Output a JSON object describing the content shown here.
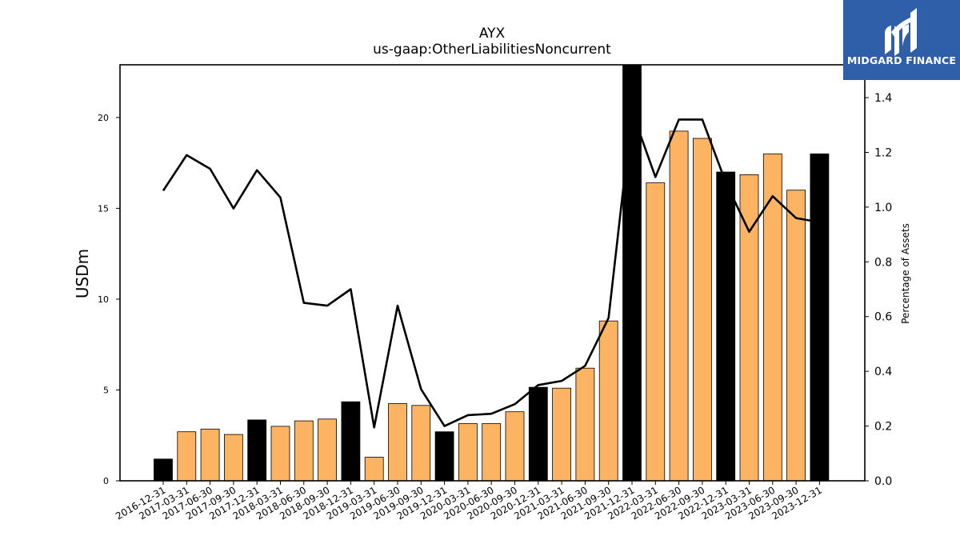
{
  "header": {
    "ticker": "AYX",
    "metric": "us-gaap:OtherLiabilitiesNoncurrent"
  },
  "logo": {
    "brand": "MIDGARD FINANCE",
    "background": "#2f5fa9"
  },
  "colors": {
    "quarter_bar": "#fdb462",
    "year_end_bar": "#000000",
    "line": "#000000"
  },
  "chart_data": {
    "type": "bar",
    "title": "AYX",
    "subtitle": "us-gaap:OtherLiabilitiesNoncurrent",
    "ylabel": "USDm",
    "y2label": "Percentage of Assets",
    "ylim": [
      0,
      22.9
    ],
    "y2lim": [
      0,
      1.52
    ],
    "yticks": [
      0,
      5,
      10,
      15,
      20
    ],
    "y2ticks": [
      0.0,
      0.2,
      0.4,
      0.6,
      0.8,
      1.0,
      1.2,
      1.4
    ],
    "categories": [
      "2016-12-31",
      "2017-03-31",
      "2017-06-30",
      "2017-09-30",
      "2017-12-31",
      "2018-03-31",
      "2018-06-30",
      "2018-09-30",
      "2018-12-31",
      "2019-03-31",
      "2019-06-30",
      "2019-09-30",
      "2019-12-31",
      "2020-03-31",
      "2020-06-30",
      "2020-09-30",
      "2020-12-31",
      "2021-03-31",
      "2021-06-30",
      "2021-09-30",
      "2021-12-31",
      "2022-03-31",
      "2022-06-30",
      "2022-09-30",
      "2022-12-31",
      "2023-03-31",
      "2023-06-30",
      "2023-09-30",
      "2023-12-31"
    ],
    "series": [
      {
        "values": [
          1.2,
          2.7,
          2.85,
          2.55,
          3.35,
          3.0,
          3.3,
          3.4,
          4.35,
          1.3,
          4.25,
          4.15,
          2.7,
          3.15,
          3.15,
          3.8,
          5.15,
          5.1,
          6.2,
          8.8,
          22.9,
          16.4,
          19.25,
          18.85,
          17.0,
          16.85,
          18.0,
          16.0,
          18.0
        ]
      },
      {
        "axis": "secondary",
        "values": [
          1.06,
          1.19,
          1.14,
          0.995,
          1.135,
          1.035,
          0.65,
          0.64,
          0.7,
          0.195,
          0.64,
          0.335,
          0.2,
          0.24,
          0.245,
          0.28,
          0.35,
          0.365,
          0.42,
          0.595,
          1.35,
          1.11,
          1.32,
          1.32,
          1.09,
          0.91,
          1.04,
          0.96,
          0.945
        ]
      }
    ],
    "year_end_flags": [
      true,
      false,
      false,
      false,
      true,
      false,
      false,
      false,
      true,
      false,
      false,
      false,
      true,
      false,
      false,
      false,
      true,
      false,
      false,
      false,
      true,
      false,
      false,
      false,
      true,
      false,
      false,
      false,
      true
    ],
    "grid": false,
    "legend": "none"
  }
}
